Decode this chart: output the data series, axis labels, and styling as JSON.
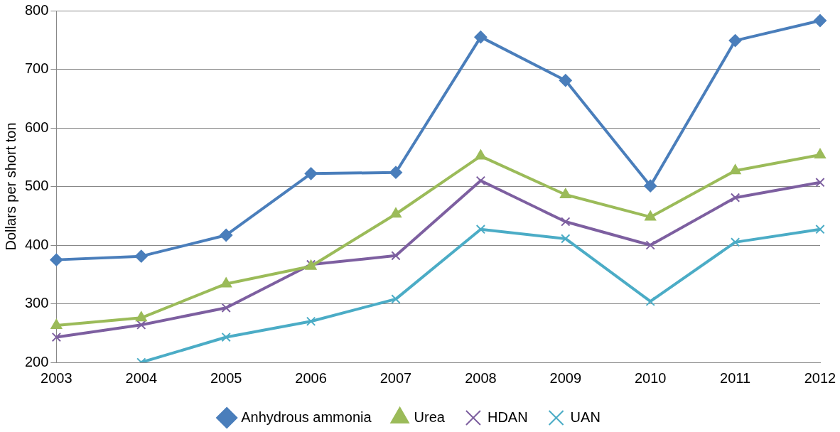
{
  "chart_data": {
    "type": "line",
    "ylabel": "Dollars per short ton",
    "categories": [
      "2003",
      "2004",
      "2005",
      "2006",
      "2007",
      "2008",
      "2009",
      "2010",
      "2011",
      "2012"
    ],
    "series": [
      {
        "name": "Anhydrous ammonia",
        "color": "#4a7ebb",
        "marker": "diamond",
        "values": [
          375,
          381,
          417,
          522,
          524,
          755,
          681,
          501,
          749,
          783
        ]
      },
      {
        "name": "Urea",
        "color": "#9bbb59",
        "marker": "triangle",
        "values": [
          263,
          276,
          334,
          364,
          453,
          552,
          486,
          448,
          527,
          554
        ]
      },
      {
        "name": "HDAN",
        "color": "#7d5fa0",
        "marker": "cross",
        "values": [
          243,
          264,
          293,
          367,
          382,
          510,
          440,
          400,
          481,
          507
        ]
      },
      {
        "name": "UAN",
        "color": "#4bacc6",
        "marker": "cross",
        "values": [
          null,
          200,
          243,
          270,
          308,
          427,
          411,
          304,
          405,
          427
        ]
      }
    ],
    "ylim": [
      200,
      800
    ],
    "yticks": [
      200,
      300,
      400,
      500,
      600,
      700,
      800
    ],
    "grid": "y",
    "legend": "bottom",
    "line_style": "solid"
  }
}
